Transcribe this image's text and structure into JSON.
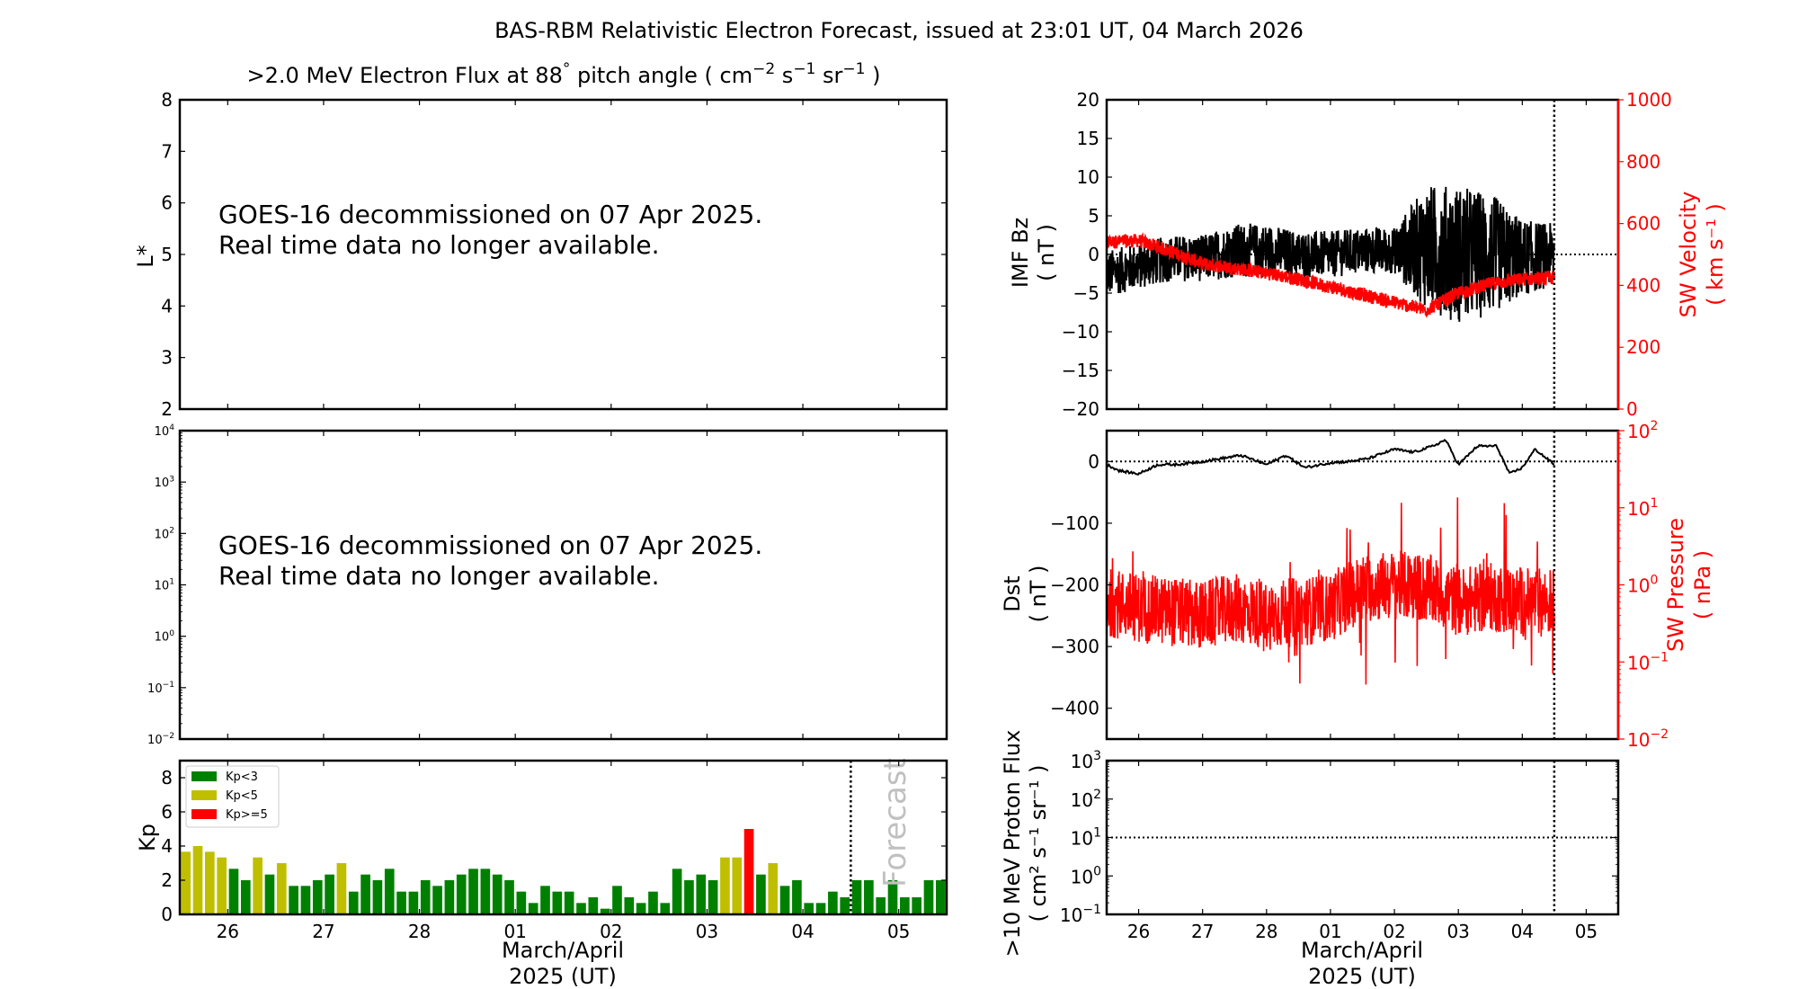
{
  "figure": {
    "title": "BAS-RBM Relativistic Electron Forecast, issued at 23:01 UT, 04 March 2026"
  },
  "colors": {
    "kp_low": "#008000",
    "kp_mid": "#bfbf00",
    "kp_high": "#ff0000",
    "secondary_axis": "#ff0000",
    "forecast_text": "#c0c0c0"
  },
  "chart_data": [
    {
      "id": "electron-flux-lstar",
      "type": "heatmap",
      "title": ">2.0 MeV Electron Flux at 88° pitch angle ( cm⁻² s⁻¹ sr⁻¹ )",
      "title_parts": {
        "main": ">2.0 MeV Electron Flux at 88",
        "deg": "°",
        "mid": " pitch angle ( cm",
        "u1": "−2",
        "s": " s",
        "u2": "−1",
        "sr": " sr",
        "u3": "−1",
        "end": " )"
      },
      "ylabel": "L*",
      "ylim": [
        2,
        8
      ],
      "yticks": [
        "2",
        "3",
        "4",
        "5",
        "6",
        "7",
        "8"
      ],
      "message": [
        "GOES-16 decommissioned on 07 Apr 2025.",
        "Real time data no longer available."
      ],
      "values": []
    },
    {
      "id": "electron-flux-log",
      "type": "line",
      "ylabel": "",
      "yscale": "log",
      "ylim": [
        0.01,
        10000
      ],
      "yticks": [
        {
          "b": "10",
          "e": "−2"
        },
        {
          "b": "10",
          "e": "−1"
        },
        {
          "b": "10",
          "e": "0"
        },
        {
          "b": "10",
          "e": "1"
        },
        {
          "b": "10",
          "e": "2"
        },
        {
          "b": "10",
          "e": "3"
        },
        {
          "b": "10",
          "e": "4"
        }
      ],
      "message": [
        "GOES-16 decommissioned on 07 Apr 2025.",
        "Real time data no longer available."
      ],
      "values": []
    },
    {
      "id": "kp-index",
      "type": "bar",
      "ylabel": "Kp",
      "ylim": [
        0,
        9
      ],
      "yticks": [
        "0",
        "2",
        "4",
        "6",
        "8"
      ],
      "xlabel": [
        "March/April",
        "2025 (UT)"
      ],
      "xticks": [
        "26",
        "27",
        "28",
        "01",
        "02",
        "03",
        "04",
        "05"
      ],
      "xlim_days": [
        -0.5,
        7.5
      ],
      "bar_interval_hours": 3,
      "forecast_start_day": 6.5,
      "forecast_label": "Forecast",
      "legend": {
        "position": "upper-left",
        "entries": [
          "Kp<3",
          "Kp<5",
          "Kp>=5"
        ]
      },
      "values": [
        3.667,
        4.0,
        3.667,
        3.333,
        2.667,
        2.0,
        3.333,
        2.333,
        3.0,
        1.667,
        1.667,
        2.0,
        2.333,
        3.0,
        1.333,
        2.333,
        2.0,
        2.667,
        1.333,
        1.333,
        2.0,
        1.667,
        2.0,
        2.333,
        2.667,
        2.667,
        2.333,
        2.0,
        1.333,
        0.667,
        1.667,
        1.333,
        1.333,
        0.667,
        1.0,
        0.333,
        1.667,
        1.0,
        0.667,
        1.333,
        0.667,
        2.667,
        2.0,
        2.333,
        2.0,
        3.333,
        3.333,
        5.0,
        2.333,
        3.0,
        1.667,
        2.0,
        0.667,
        0.667,
        1.333,
        1.0,
        2.0,
        2.0,
        1.0,
        2.0,
        1.0,
        1.0,
        2.0,
        2.0
      ]
    },
    {
      "id": "imf-bz-sw-velocity",
      "type": "line",
      "ylabel": [
        "IMF Bz",
        "( nT )"
      ],
      "ylim": [
        -20,
        20
      ],
      "yticks": [
        "−20",
        "−15",
        "−10",
        "−5",
        "0",
        "5",
        "10",
        "15",
        "20"
      ],
      "y2label": [
        "SW Velocity",
        "( km s⁻¹ )"
      ],
      "y2lim": [
        0,
        1000
      ],
      "y2ticks": [
        "0",
        "200",
        "400",
        "600",
        "800",
        "1000"
      ],
      "forecast_start_day": 6.5,
      "series": [
        {
          "name": "IMF Bz (nT)",
          "color": "#000000",
          "x_days": [
            -0.5,
            0.0,
            0.5,
            1.0,
            1.5,
            2.0,
            2.5,
            3.0,
            3.5,
            4.0,
            4.5,
            5.0,
            5.5,
            6.0,
            6.5
          ],
          "mean": [
            -2.5,
            -1.5,
            -0.5,
            -0.5,
            0.5,
            0.5,
            0,
            0,
            0.5,
            0.5,
            1,
            0,
            0,
            -0.5,
            0
          ],
          "amplitude": [
            3,
            3,
            3,
            3,
            3.5,
            3.5,
            3,
            3,
            3,
            3,
            8,
            9,
            8,
            5,
            4
          ]
        },
        {
          "name": "SW Velocity (km/s)",
          "color": "#ff0000",
          "x_days": [
            -0.5,
            0.0,
            0.5,
            1.0,
            1.5,
            2.0,
            2.5,
            3.0,
            3.5,
            4.0,
            4.5,
            5.0,
            5.5,
            6.0,
            6.5
          ],
          "values": [
            540,
            545,
            510,
            470,
            455,
            440,
            420,
            395,
            370,
            345,
            320,
            375,
            405,
            420,
            425
          ]
        }
      ]
    },
    {
      "id": "dst-sw-pressure",
      "type": "line",
      "ylabel": [
        "Dst",
        "( nT )"
      ],
      "ylim": [
        -450,
        50
      ],
      "yticks": [
        "−400",
        "−300",
        "−200",
        "−100",
        "0"
      ],
      "y2label": [
        "SW Pressure",
        "( nPa )"
      ],
      "y2scale": "log",
      "y2lim": [
        0.01,
        100
      ],
      "y2ticks": [
        {
          "b": "10",
          "e": "−2"
        },
        {
          "b": "10",
          "e": "−1"
        },
        {
          "b": "10",
          "e": "0"
        },
        {
          "b": "10",
          "e": "1"
        },
        {
          "b": "10",
          "e": "2"
        }
      ],
      "forecast_start_day": 6.5,
      "series": [
        {
          "name": "Dst (nT)",
          "color": "#000000",
          "x_days": [
            -0.5,
            -0.3,
            0.0,
            0.3,
            0.6,
            1.0,
            1.3,
            1.6,
            2.0,
            2.3,
            2.6,
            3.0,
            3.3,
            3.6,
            4.0,
            4.3,
            4.6,
            4.8,
            5.0,
            5.3,
            5.6,
            5.8,
            6.0,
            6.2,
            6.5
          ],
          "values": [
            -5,
            -15,
            -20,
            -5,
            -5,
            0,
            5,
            10,
            -5,
            10,
            -10,
            -2,
            0,
            5,
            20,
            15,
            25,
            35,
            -5,
            25,
            25,
            -20,
            -10,
            20,
            -5
          ]
        },
        {
          "name": "SW Pressure (nPa)",
          "color": "#ff0000",
          "x_days": [
            -0.5,
            0.0,
            0.5,
            1.0,
            1.5,
            2.0,
            2.5,
            3.0,
            3.5,
            4.0,
            4.5,
            5.0,
            5.5,
            6.0,
            6.5
          ],
          "values": [
            0.6,
            0.5,
            0.45,
            0.4,
            0.5,
            0.4,
            0.45,
            0.5,
            0.9,
            1.0,
            0.9,
            0.6,
            0.7,
            0.6,
            0.6
          ]
        }
      ]
    },
    {
      "id": "proton-flux",
      "type": "line",
      "ylabel": [
        ">10 MeV Proton Flux",
        "( cm² s⁻¹ sr⁻¹ )"
      ],
      "yscale": "log",
      "ylim": [
        0.1,
        1000
      ],
      "yticks": [
        {
          "b": "10",
          "e": "−1"
        },
        {
          "b": "10",
          "e": "0"
        },
        {
          "b": "10",
          "e": "1"
        },
        {
          "b": "10",
          "e": "2"
        },
        {
          "b": "10",
          "e": "3"
        }
      ],
      "threshold": 10,
      "xlabel": [
        "March/April",
        "2025 (UT)"
      ],
      "xticks": [
        "26",
        "27",
        "28",
        "01",
        "02",
        "03",
        "04",
        "05"
      ],
      "forecast_start_day": 6.5,
      "values": []
    }
  ]
}
